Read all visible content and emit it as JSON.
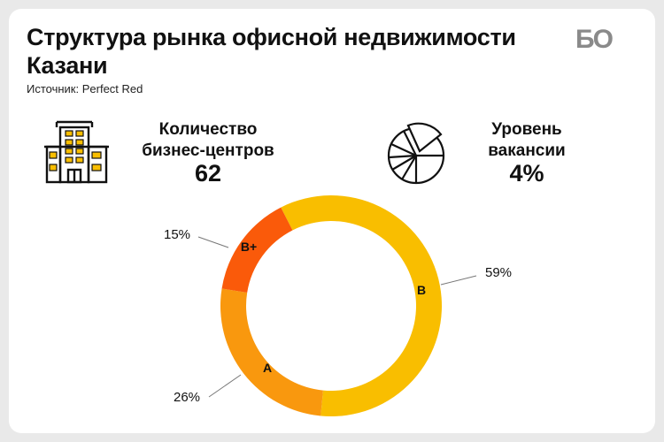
{
  "header": {
    "title": "Структура рынка офисной недвижимости Казани",
    "source": "Источник: Perfect Red",
    "logo": "БО"
  },
  "stats": {
    "business_centers": {
      "label_line1": "Количество",
      "label_line2": "бизнес-центров",
      "value": "62",
      "icon": "office-building-icon"
    },
    "vacancy": {
      "label_line1": "Уровень",
      "label_line2": "вакансии",
      "value": "4%",
      "icon": "pie-chart-icon"
    }
  },
  "colors": {
    "B": "#f9be00",
    "A": "#f9980e",
    "B+": "#fa5a0a"
  },
  "chart_data": {
    "type": "pie",
    "style": "donut",
    "categories": [
      "B",
      "A",
      "B+"
    ],
    "values": [
      59,
      26,
      15
    ],
    "percent_labels": [
      "59%",
      "26%",
      "15%"
    ],
    "title": ""
  }
}
